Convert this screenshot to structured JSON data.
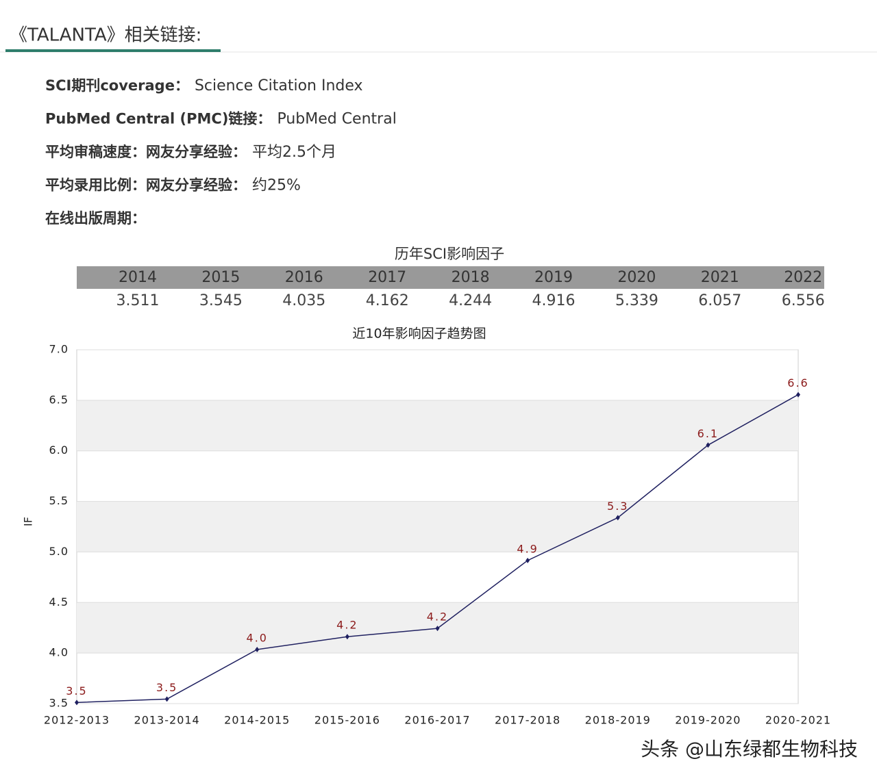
{
  "header": {
    "title": "《TALANTA》相关链接:"
  },
  "info": [
    {
      "label": "SCI期刊coverage：",
      "value": "Science Citation Index"
    },
    {
      "label": "PubMed Central (PMC)链接：",
      "value": "PubMed Central"
    },
    {
      "label": "平均审稿速度：网友分享经验：",
      "value": "平均2.5个月"
    },
    {
      "label": "平均录用比例：网友分享经验：",
      "value": "约25%"
    },
    {
      "label": "在线出版周期："
    }
  ],
  "table": {
    "title": "历年SCI影响因子",
    "columns": [
      "2014",
      "2015",
      "2016",
      "2017",
      "2018",
      "2019",
      "2020",
      "2021",
      "2022"
    ],
    "rows": [
      [
        3.511,
        3.545,
        4.035,
        4.162,
        4.244,
        4.916,
        5.339,
        6.057,
        6.556
      ]
    ]
  },
  "chart_data": {
    "type": "line",
    "title": "近10年影响因子趋势图",
    "y_label": "IF",
    "categories": [
      "2012-2013",
      "2013-2014",
      "2014-2015",
      "2015-2016",
      "2016-2017",
      "2017-2018",
      "2018-2019",
      "2019-2020",
      "2020-2021"
    ],
    "values": [
      3.511,
      3.545,
      4.035,
      4.162,
      4.244,
      4.916,
      5.339,
      6.057,
      6.556
    ],
    "value_labels": [
      "3.5",
      "3.5",
      "4.0",
      "4.2",
      "4.2",
      "4.9",
      "5.3",
      "6.1",
      "6.6"
    ],
    "color": "#1f2060",
    "label_color": "#8b1a1a",
    "ylim": [
      3.5,
      7.0
    ],
    "yticks": [
      3.5,
      {
        "value": 4,
        "label": "4.0"
      },
      4.5,
      {
        "value": 5,
        "label": "5.0"
      },
      5.5,
      {
        "value": 6,
        "label": "6.0"
      },
      6.5,
      {
        "value": 7,
        "label": "7.0"
      }
    ],
    "grid": true
  },
  "watermark": "头条 @山东绿都生物科技"
}
